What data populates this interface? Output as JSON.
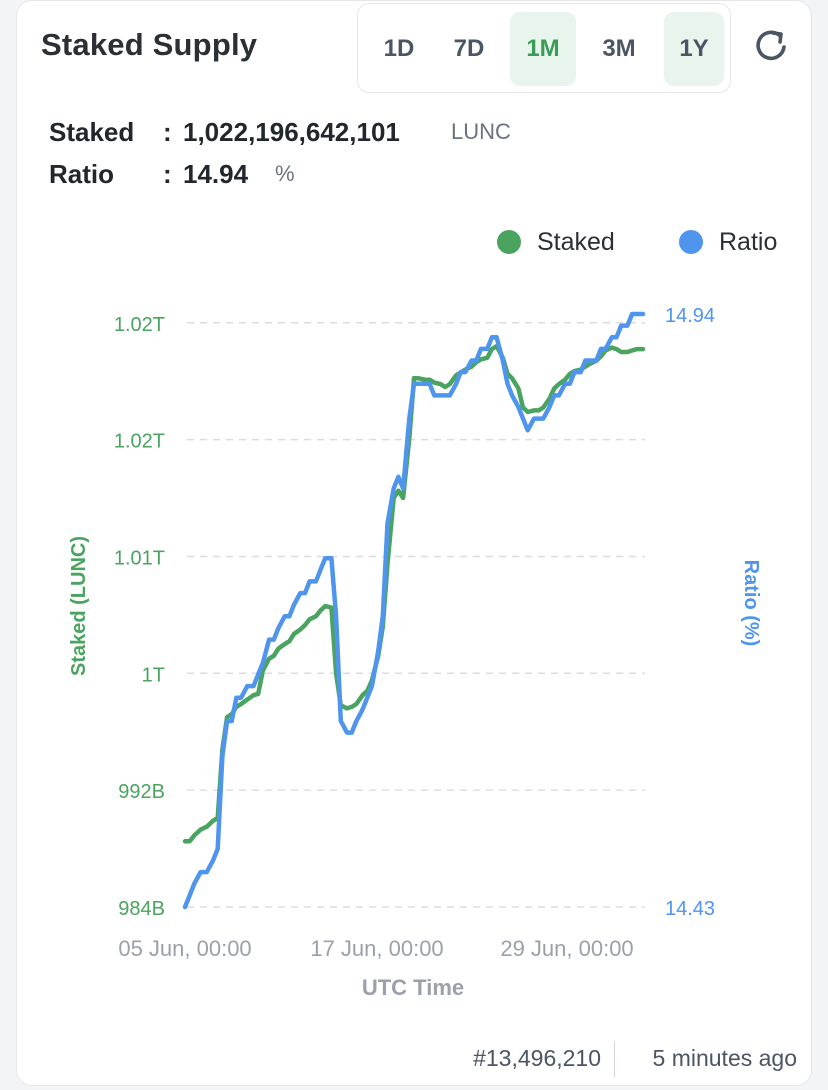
{
  "header": {
    "title": "Staked Supply",
    "tabs": [
      {
        "label": "1D",
        "state": "normal"
      },
      {
        "label": "7D",
        "state": "normal"
      },
      {
        "label": "1M",
        "state": "active"
      },
      {
        "label": "3M",
        "state": "normal"
      },
      {
        "label": "1Y",
        "state": "highlighted"
      }
    ],
    "refresh_icon": "refresh-icon"
  },
  "stats": {
    "staked_label": "Staked",
    "staked_value": "1,022,196,642,101",
    "staked_unit": "LUNC",
    "ratio_label": "Ratio",
    "ratio_value": "14.94",
    "ratio_unit": "%",
    "colon": ":"
  },
  "colors": {
    "staked": "#4aa35f",
    "ratio": "#4f95ee",
    "grid": "#d9dde3",
    "axis_text": "#9aa1ab"
  },
  "chart_data": {
    "type": "line",
    "legend": [
      "Staked",
      "Ratio"
    ],
    "legend_position": "top-right",
    "xlabel": "UTC Time",
    "x_ticks": [
      "05 Jun, 00:00",
      "17 Jun, 00:00",
      "29 Jun, 00:00"
    ],
    "y_left": {
      "label": "Staked (LUNC)",
      "range": [
        984,
        1024.6
      ],
      "ticks": [
        {
          "value": 984,
          "label": "984B"
        },
        {
          "value": 992,
          "label": "992B"
        },
        {
          "value": 1000,
          "label": "1T"
        },
        {
          "value": 1008,
          "label": "1.01T"
        },
        {
          "value": 1016,
          "label": "1.02T"
        },
        {
          "value": 1024,
          "label": "1.02T"
        }
      ]
    },
    "y_right": {
      "label": "Ratio (%)",
      "range": [
        14.43,
        14.94
      ],
      "ticks": [
        {
          "value": 14.43,
          "label": "14.43"
        },
        {
          "value": 14.94,
          "label": "14.94"
        }
      ]
    },
    "x_days": [
      0,
      0.3,
      0.6,
      1.0,
      1.4,
      1.8,
      2.1,
      2.4,
      2.7,
      3.0,
      3.3,
      3.6,
      4.0,
      4.4,
      4.7,
      5.0,
      5.4,
      5.7,
      6.0,
      6.4,
      6.7,
      7.0,
      7.4,
      7.7,
      8.0,
      8.4,
      8.7,
      9.0,
      9.4,
      9.7,
      10.0,
      10.4,
      10.7,
      11.0,
      11.4,
      11.7,
      12.0,
      12.4,
      12.7,
      13.0,
      13.4,
      13.7,
      14.0,
      14.4,
      14.7,
      15.0,
      15.4,
      15.7,
      16.0,
      16.4,
      16.7,
      17.0,
      17.4,
      17.7,
      18.0,
      18.4,
      18.7,
      19.0,
      19.4,
      19.7,
      20.0,
      20.4,
      20.7,
      21.0,
      21.4,
      21.7,
      22.0,
      22.4,
      22.7,
      23.0,
      23.4,
      23.7,
      24.0,
      24.4,
      24.7,
      25.0,
      25.4,
      25.7,
      26.0,
      26.4,
      26.7,
      27.0,
      27.4,
      27.7,
      28.0,
      28.4,
      28.7,
      29.0,
      29.4
    ],
    "series": [
      {
        "name": "Staked",
        "axis": "left",
        "values": [
          988.5,
          988.5,
          988.9,
          989.3,
          989.5,
          989.9,
          990.1,
          994.8,
          997.0,
          997.2,
          997.7,
          997.9,
          998.2,
          998.5,
          998.6,
          1000.2,
          1001.0,
          1001.2,
          1001.7,
          1002.0,
          1002.2,
          1002.7,
          1003.0,
          1003.3,
          1003.7,
          1003.9,
          1004.3,
          1004.6,
          1004.5,
          1000.0,
          997.8,
          997.6,
          997.7,
          997.9,
          998.5,
          998.8,
          999.5,
          1001.2,
          1003.2,
          1007.5,
          1012.0,
          1012.5,
          1012.0,
          1016.1,
          1020.2,
          1020.2,
          1020.1,
          1020.1,
          1019.9,
          1019.8,
          1019.6,
          1019.8,
          1020.4,
          1020.6,
          1020.8,
          1021.0,
          1021.3,
          1021.5,
          1021.6,
          1022.2,
          1022.4,
          1021.6,
          1020.5,
          1020.2,
          1019.5,
          1018.2,
          1017.9,
          1018.0,
          1018.0,
          1018.2,
          1018.8,
          1019.5,
          1019.8,
          1020.1,
          1020.5,
          1020.7,
          1020.8,
          1021.0,
          1021.2,
          1021.4,
          1021.7,
          1022.1,
          1022.3,
          1022.2,
          1022.0,
          1022.0,
          1022.1,
          1022.2,
          1022.2
        ]
      },
      {
        "name": "Ratio",
        "axis": "right",
        "values": [
          14.43,
          14.44,
          14.45,
          14.46,
          14.46,
          14.47,
          14.48,
          14.56,
          14.59,
          14.59,
          14.61,
          14.61,
          14.62,
          14.62,
          14.63,
          14.64,
          14.66,
          14.66,
          14.67,
          14.68,
          14.68,
          14.69,
          14.7,
          14.7,
          14.71,
          14.71,
          14.72,
          14.73,
          14.73,
          14.68,
          14.59,
          14.58,
          14.58,
          14.59,
          14.6,
          14.61,
          14.62,
          14.65,
          14.68,
          14.76,
          14.79,
          14.8,
          14.79,
          14.85,
          14.88,
          14.88,
          14.88,
          14.88,
          14.87,
          14.87,
          14.87,
          14.87,
          14.88,
          14.89,
          14.89,
          14.9,
          14.9,
          14.91,
          14.91,
          14.92,
          14.92,
          14.9,
          14.88,
          14.87,
          14.86,
          14.85,
          14.84,
          14.85,
          14.85,
          14.85,
          14.86,
          14.87,
          14.87,
          14.88,
          14.88,
          14.89,
          14.89,
          14.9,
          14.9,
          14.9,
          14.91,
          14.91,
          14.92,
          14.92,
          14.93,
          14.93,
          14.94,
          14.94,
          14.94
        ]
      }
    ]
  },
  "footer": {
    "block": "#13,496,210",
    "updated": "5 minutes ago"
  }
}
